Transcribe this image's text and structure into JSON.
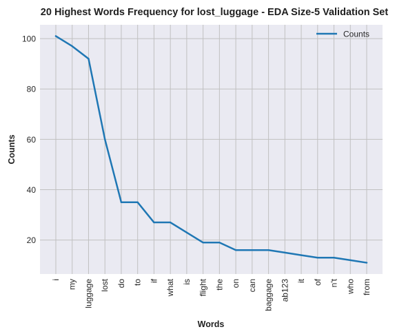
{
  "chart_data": {
    "type": "line",
    "title": "20 Highest Words Frequency for lost_luggage - EDA Size-5 Validation Set",
    "xlabel": "Words",
    "ylabel": "Counts",
    "categories": [
      "i",
      "my",
      "luggage",
      "lost",
      "do",
      "to",
      "if",
      "what",
      "is",
      "flight",
      "the",
      "on",
      "can",
      "baggage",
      "ab123",
      "it",
      "of",
      "n't",
      "who",
      "from"
    ],
    "series": [
      {
        "name": "Counts",
        "values": [
          101,
          97,
          92,
          60,
          35,
          35,
          27,
          27,
          23,
          19,
          19,
          16,
          16,
          16,
          15,
          14,
          13,
          13,
          12,
          11
        ]
      }
    ],
    "ylim": [
      6.5,
      105.5
    ],
    "yticks": [
      20,
      40,
      60,
      80,
      100
    ],
    "grid": true,
    "legend_position": "top-right",
    "colors": {
      "line": "#1f77b4",
      "plot_background": "#eaeaf2",
      "grid": "#c0c0c0"
    }
  }
}
